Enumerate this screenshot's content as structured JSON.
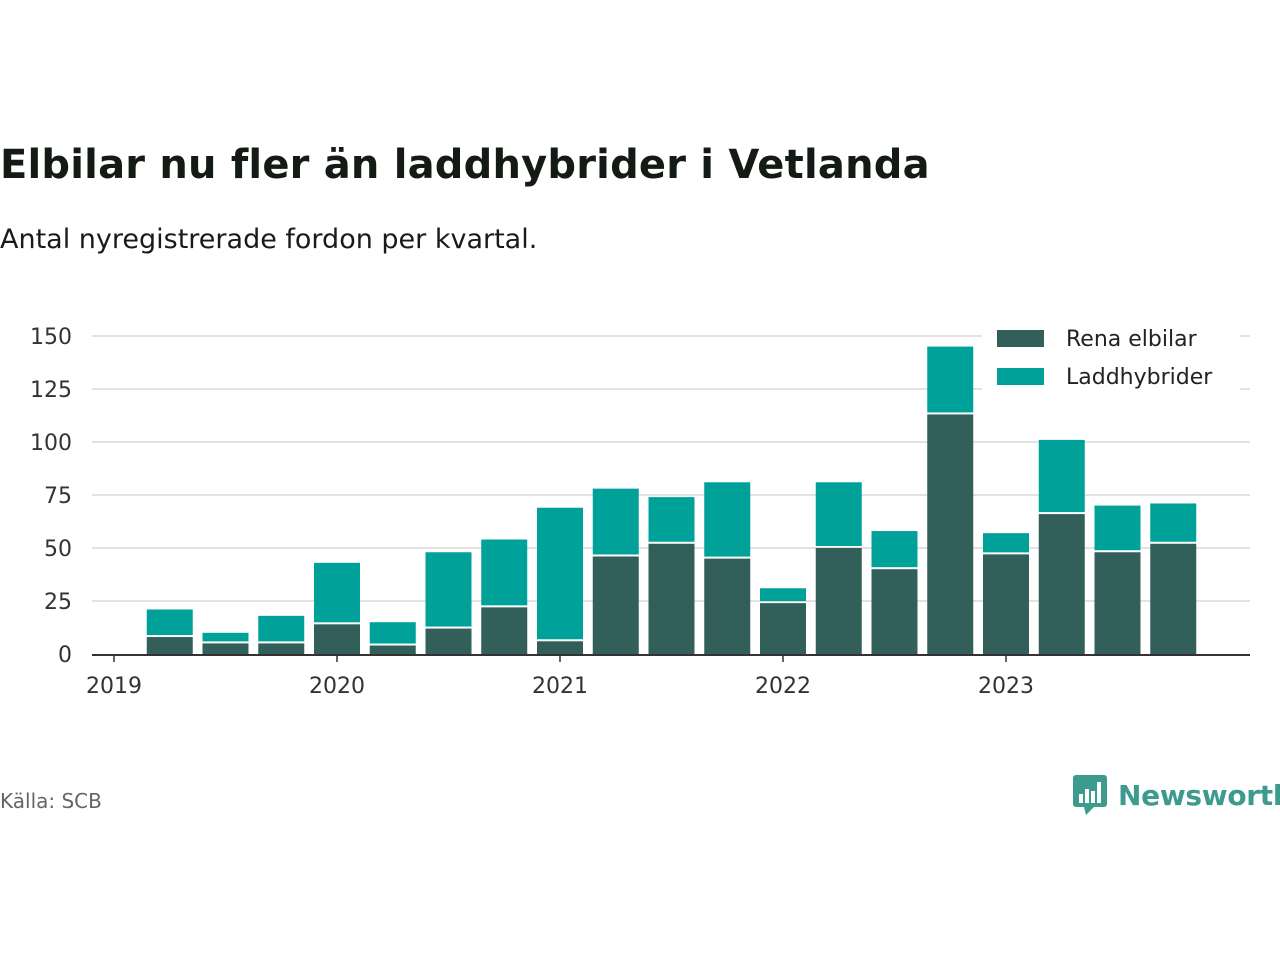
{
  "title": "Elbilar nu fler än laddhybrider i Vetlanda",
  "subtitle": "Antal nyregistrerade fordon per kvartal.",
  "source": "Källa: SCB",
  "brand": "Newsworthy",
  "colors": {
    "rena": "#335f5a",
    "ladd": "#00a199",
    "grid": "#d9d9d9",
    "axis": "#333333",
    "brand": "#3d9a8f"
  },
  "chart_data": {
    "type": "bar",
    "stacked": true,
    "categories": [
      "2019 Q2",
      "2019 Q3",
      "2019 Q4",
      "2020 Q1",
      "2020 Q2",
      "2020 Q3",
      "2020 Q4",
      "2021 Q1",
      "2021 Q2",
      "2021 Q3",
      "2021 Q4",
      "2022 Q1",
      "2022 Q2",
      "2022 Q3",
      "2022 Q4",
      "2023 Q1",
      "2023 Q2",
      "2023 Q3",
      "2023 Q4"
    ],
    "series": [
      {
        "name": "Rena elbilar",
        "values": [
          8,
          5,
          5,
          14,
          4,
          12,
          22,
          6,
          46,
          52,
          45,
          24,
          50,
          40,
          113,
          47,
          66,
          48,
          52
        ]
      },
      {
        "name": "Laddhybrider",
        "values": [
          13,
          5,
          13,
          29,
          11,
          36,
          32,
          63,
          32,
          22,
          36,
          7,
          31,
          18,
          32,
          10,
          35,
          22,
          19
        ]
      }
    ],
    "x_tick_labels": [
      "2019",
      "2020",
      "2021",
      "2022",
      "2023"
    ],
    "y_ticks": [
      0,
      25,
      50,
      75,
      100,
      125,
      150
    ],
    "ylim": [
      0,
      150
    ],
    "legend_position": "top-right",
    "xlabel": "",
    "ylabel": ""
  }
}
